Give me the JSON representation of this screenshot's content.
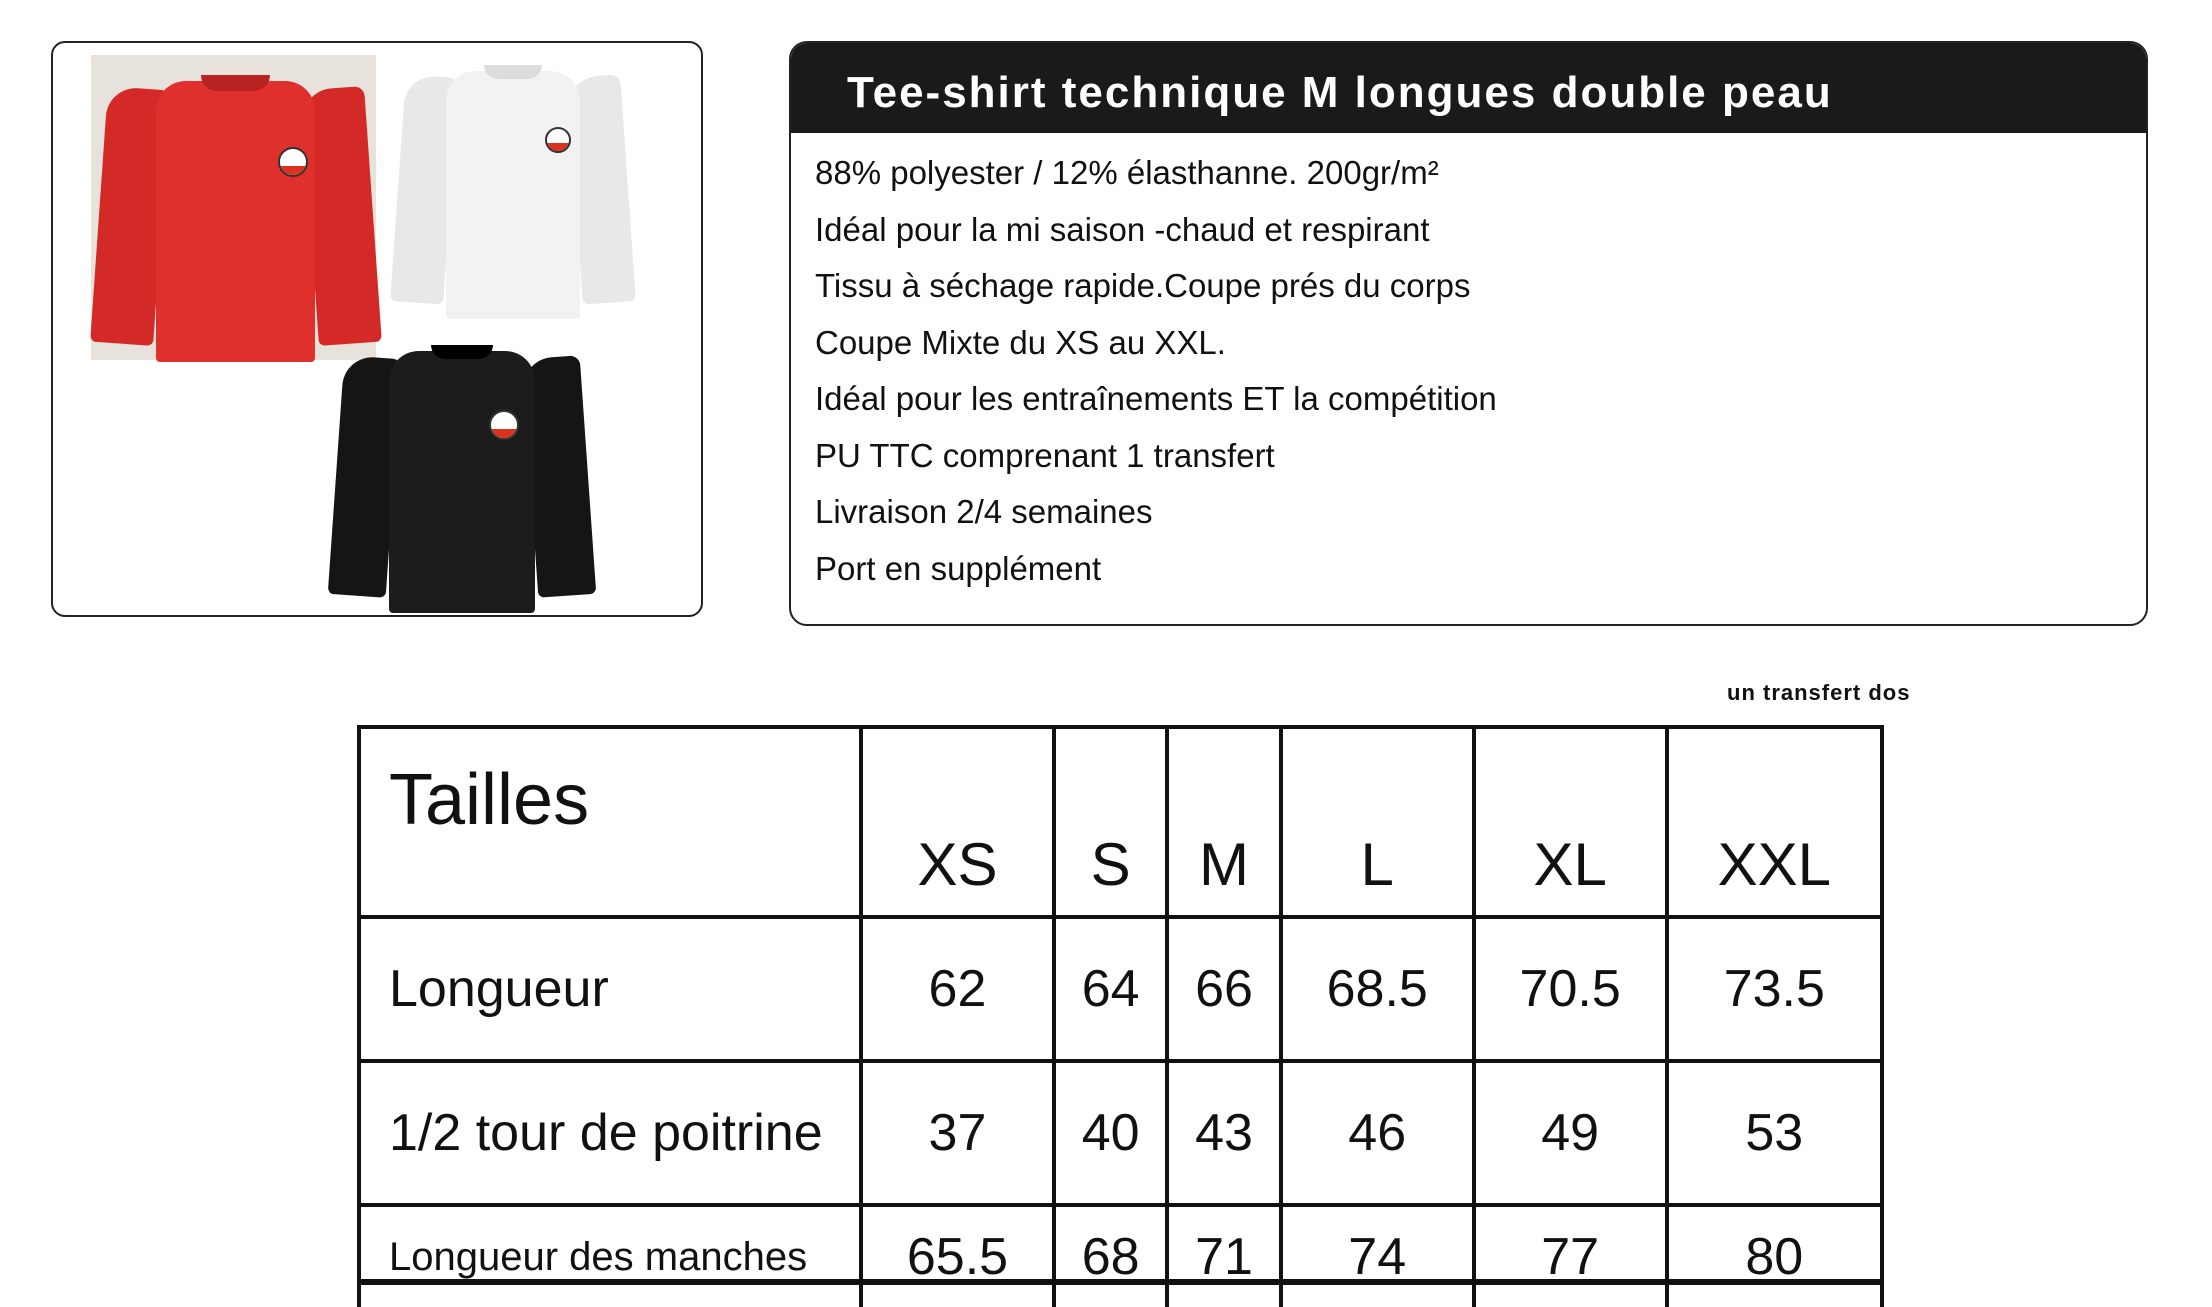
{
  "product": {
    "title": "Tee-shirt  technique M longues double peau",
    "colors": {
      "red": "#e0302c",
      "white": "#f2f2f2",
      "black": "#1c1c1c",
      "logo_accent": "#d9331f"
    },
    "features": [
      "88%  polyester  / 12% élasthanne. 200gr/m²",
      "Idéal pour la mi saison -chaud et respirant",
      "Tissu à séchage rapide.Coupe prés du corps",
      "Coupe Mixte du XS au XXL.",
      "Idéal pour les entraînements ET la compétition",
      "PU TTC comprenant 1 transfert",
      "Livraison 2/4 semaines",
      "Port en supplément"
    ]
  },
  "note": "un transfert dos",
  "size_table": {
    "header_label": "Tailles",
    "sizes": [
      "XS",
      "S",
      "M",
      "L",
      "XL",
      "XXL"
    ],
    "rows": [
      {
        "label": "Longueur",
        "values": [
          "62",
          "64",
          "66",
          "68.5",
          "70.5",
          "73.5"
        ]
      },
      {
        "label": "1/2 tour de poitrine",
        "values": [
          "37",
          "40",
          "43",
          "46",
          "49",
          "53"
        ]
      },
      {
        "label": "Longueur des manches",
        "values": [
          "65.5",
          "68",
          "71",
          "74",
          "77",
          "80"
        ]
      }
    ]
  }
}
